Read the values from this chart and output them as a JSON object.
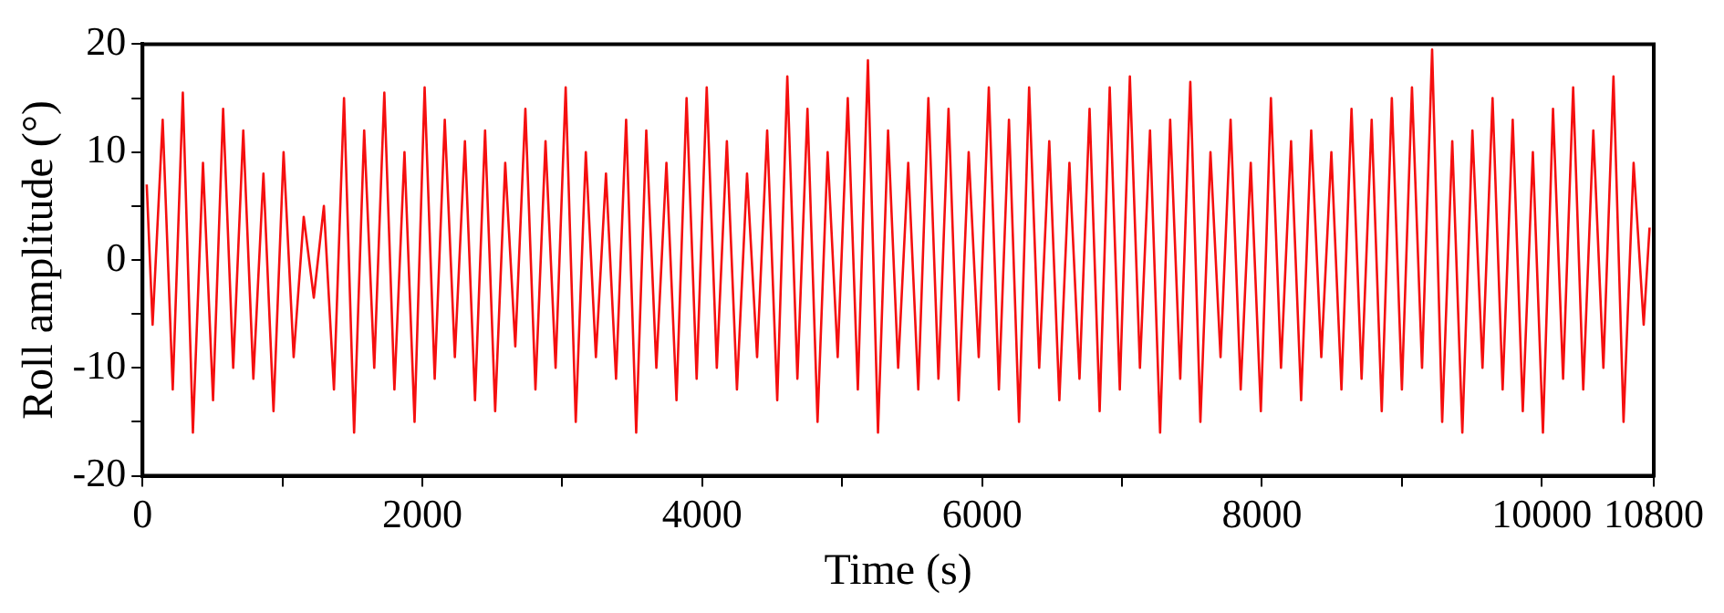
{
  "chart_data": {
    "type": "line",
    "xlabel": "Time (s)",
    "ylabel": "Roll amplitude (°)",
    "x": [
      30,
      72,
      144,
      216,
      288,
      360,
      432,
      504,
      576,
      648,
      720,
      792,
      864,
      936,
      1008,
      1080,
      1152,
      1224,
      1296,
      1368,
      1440,
      1512,
      1584,
      1656,
      1728,
      1800,
      1872,
      1944,
      2016,
      2088,
      2160,
      2232,
      2304,
      2376,
      2448,
      2520,
      2592,
      2664,
      2736,
      2808,
      2880,
      2952,
      3024,
      3096,
      3168,
      3240,
      3312,
      3384,
      3456,
      3528,
      3600,
      3672,
      3744,
      3816,
      3888,
      3960,
      4032,
      4104,
      4176,
      4248,
      4320,
      4392,
      4464,
      4536,
      4608,
      4680,
      4752,
      4824,
      4896,
      4968,
      5040,
      5112,
      5184,
      5256,
      5328,
      5400,
      5472,
      5544,
      5616,
      5688,
      5760,
      5832,
      5904,
      5976,
      6048,
      6120,
      6192,
      6264,
      6336,
      6408,
      6480,
      6552,
      6624,
      6696,
      6768,
      6840,
      6912,
      6984,
      7056,
      7128,
      7200,
      7272,
      7344,
      7416,
      7488,
      7560,
      7632,
      7704,
      7776,
      7848,
      7920,
      7992,
      8064,
      8136,
      8208,
      8280,
      8352,
      8424,
      8496,
      8568,
      8640,
      8712,
      8784,
      8856,
      8928,
      9000,
      9072,
      9144,
      9216,
      9288,
      9360,
      9432,
      9504,
      9576,
      9648,
      9720,
      9792,
      9864,
      9936,
      10008,
      10080,
      10152,
      10224,
      10296,
      10368,
      10440,
      10512,
      10584,
      10656,
      10728,
      10770
    ],
    "series": [
      {
        "color": "#f50f0f",
        "values": [
          7,
          -6,
          13,
          -12,
          15.5,
          -16,
          9,
          -13,
          14,
          -10,
          12,
          -11,
          8,
          -14,
          10,
          -9,
          4,
          -3.5,
          5,
          -12,
          15,
          -16,
          12,
          -10,
          15.5,
          -12,
          10,
          -15,
          16,
          -11,
          13,
          -9,
          11,
          -13,
          12,
          -14,
          9,
          -8,
          14,
          -12,
          11,
          -10,
          16,
          -15,
          10,
          -9,
          8,
          -11,
          13,
          -16,
          12,
          -10,
          9,
          -13,
          15,
          -11,
          16,
          -10,
          11,
          -12,
          8,
          -9,
          12,
          -13,
          17,
          -11,
          14,
          -15,
          10,
          -9,
          15,
          -12,
          18.5,
          -16,
          12,
          -10,
          9,
          -12,
          15,
          -11,
          14,
          -13,
          10,
          -9,
          16,
          -12,
          13,
          -15,
          16,
          -10,
          11,
          -13,
          9,
          -11,
          14,
          -14,
          16,
          -12,
          17,
          -10,
          12,
          -16,
          13,
          -11,
          16.5,
          -15,
          10,
          -9,
          13,
          -12,
          9,
          -14,
          15,
          -10,
          11,
          -13,
          12,
          -9,
          10,
          -12,
          14,
          -11,
          13,
          -14,
          15,
          -12,
          16,
          -10,
          19.5,
          -15,
          11,
          -16,
          12,
          -10,
          15,
          -12,
          13,
          -14,
          10,
          -16,
          14,
          -11,
          16,
          -12,
          12,
          -10,
          17,
          -15,
          9,
          -6,
          3
        ]
      }
    ],
    "xlim": [
      0,
      10800
    ],
    "xticks": [
      0,
      {
        "value": 1000,
        "label": null
      },
      2000,
      {
        "value": 3000,
        "label": null
      },
      4000,
      {
        "value": 5000,
        "label": null
      },
      6000,
      {
        "value": 7000,
        "label": null
      },
      8000,
      {
        "value": 9000,
        "label": null
      },
      10000,
      10800
    ],
    "ylim": [
      -20,
      20
    ],
    "yticks": [
      -20,
      {
        "value": -15,
        "label": null
      },
      -10,
      {
        "value": -5,
        "label": null
      },
      0,
      {
        "value": 5,
        "label": null
      },
      10,
      {
        "value": 15,
        "label": null
      },
      20
    ],
    "grid": false,
    "legend": false,
    "marker": "none",
    "line_style": "solid"
  }
}
